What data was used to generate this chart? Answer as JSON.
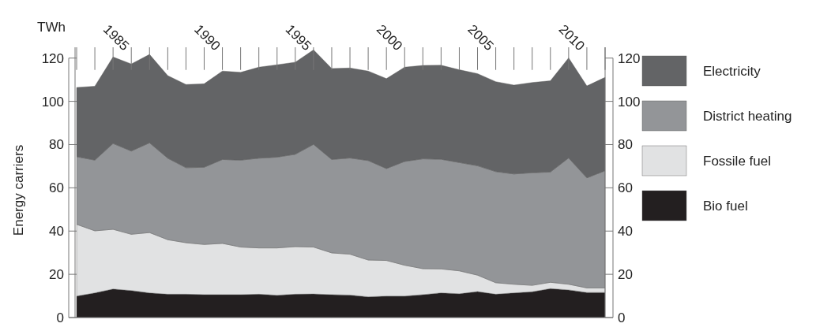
{
  "chart_data": {
    "type": "area",
    "stacked": true,
    "ylabel": "Energy carriers",
    "annotations": [
      "TWh"
    ],
    "x": [
      1983,
      1984,
      1985,
      1986,
      1987,
      1988,
      1989,
      1990,
      1991,
      1992,
      1993,
      1994,
      1995,
      1996,
      1997,
      1998,
      1999,
      2000,
      2001,
      2002,
      2003,
      2004,
      2005,
      2006,
      2007,
      2008,
      2009,
      2010,
      2011,
      2012
    ],
    "xlim": [
      1983,
      2012
    ],
    "xticks": [
      1985,
      1990,
      1995,
      2000,
      2005,
      2010
    ],
    "ylim": [
      0,
      125
    ],
    "yticks": [
      0,
      20,
      40,
      60,
      80,
      100,
      120
    ],
    "y2lim": [
      0,
      125
    ],
    "y2ticks": [
      0,
      20,
      40,
      60,
      80,
      100,
      120
    ],
    "legend": "right",
    "series": [
      {
        "name": "Bio fuel",
        "color": "#231f20",
        "values": [
          9.9,
          11.4,
          13.2,
          12.5,
          11.4,
          10.8,
          10.8,
          10.6,
          10.6,
          10.6,
          10.8,
          10.3,
          10.8,
          10.9,
          10.6,
          10.4,
          9.6,
          9.9,
          9.9,
          10.6,
          11.4,
          11,
          12,
          10.8,
          11.4,
          11.9,
          13.4,
          12.8,
          11.6,
          11.6
        ]
      },
      {
        "name": "Fossile fuel",
        "color": "#e1e2e3",
        "values": [
          33.2,
          28.7,
          27.6,
          26,
          27.9,
          25.2,
          23.8,
          23.2,
          23.7,
          22,
          21.4,
          21.9,
          22,
          21.7,
          19.3,
          18.9,
          17,
          16.5,
          14.3,
          12,
          11.1,
          10.6,
          7.6,
          5.3,
          4,
          3,
          2.9,
          2.6,
          2.1,
          2.1
        ]
      },
      {
        "name": "District heating",
        "color": "#939598",
        "values": [
          31.3,
          32.7,
          39.7,
          38.5,
          41.5,
          37.7,
          34.7,
          35.7,
          38.8,
          40.2,
          41.5,
          42,
          42.7,
          47.5,
          43.2,
          44.5,
          46,
          42.5,
          48,
          50.8,
          50.7,
          50.1,
          50.6,
          51.4,
          51,
          52.1,
          51,
          58.4,
          50.9,
          54.2
        ]
      },
      {
        "name": "Electricity",
        "color": "#636466",
        "values": [
          32,
          34.2,
          40,
          40.3,
          40.9,
          38.2,
          38.5,
          38.6,
          40.9,
          40.6,
          42.1,
          42.7,
          42.6,
          43.7,
          42.1,
          41.6,
          41.4,
          41.6,
          43.6,
          43.2,
          43.5,
          42.9,
          42.6,
          41.6,
          41.1,
          41.7,
          42.2,
          46.3,
          42.5,
          43.2
        ]
      }
    ]
  }
}
